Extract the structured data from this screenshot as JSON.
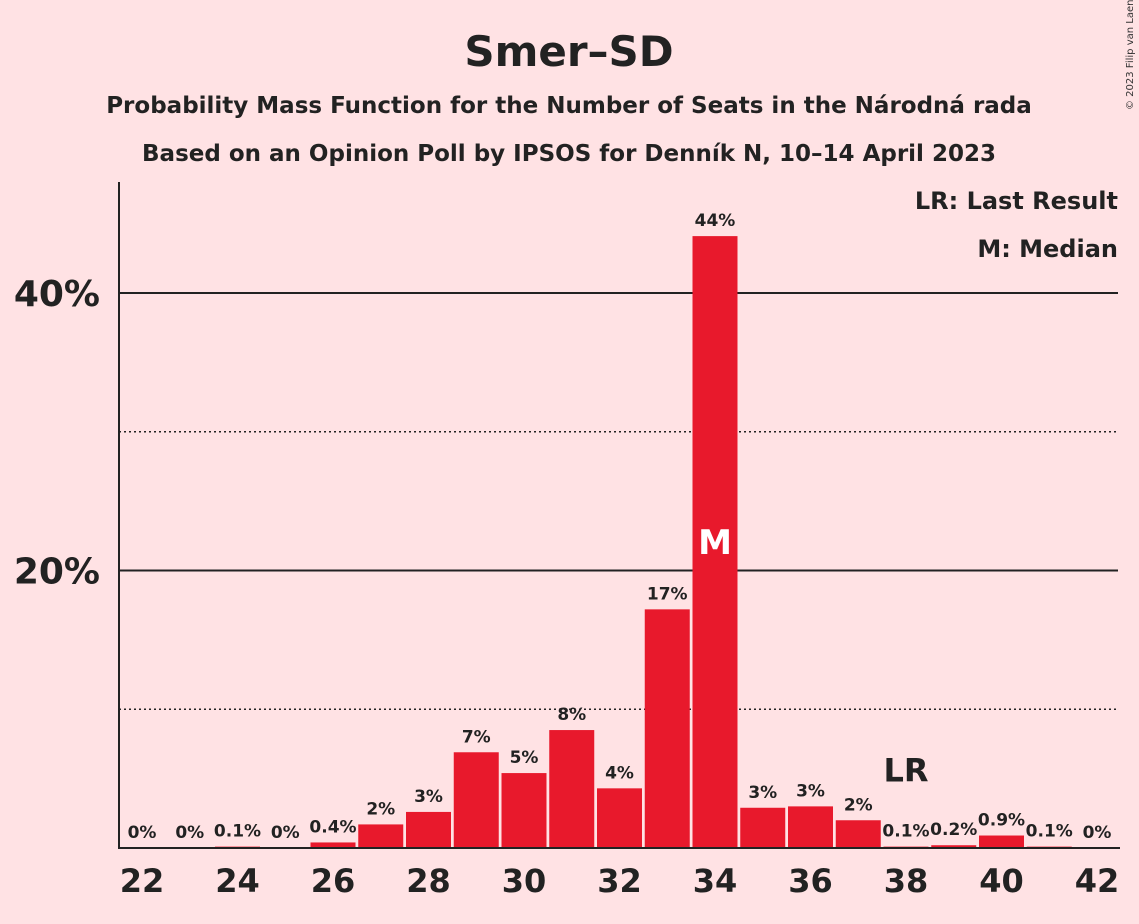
{
  "chart_data": {
    "type": "bar",
    "title": "Smer–SD",
    "subtitle_lines": [
      "Probability Mass Function for the Number of Seats in the Národná rada",
      "Based on an Opinion Poll by IPSOS for Denník N, 10–14 April 2023"
    ],
    "copyright": "© 2023 Filip van Laenen",
    "legend": [
      "LR: Last Result",
      "M: Median"
    ],
    "categories": [
      22,
      23,
      24,
      25,
      26,
      27,
      28,
      29,
      30,
      31,
      32,
      33,
      34,
      35,
      36,
      37,
      38,
      39,
      40,
      41,
      42
    ],
    "values": [
      0,
      0,
      0.1,
      0,
      0.4,
      1.7,
      2.6,
      6.9,
      5.4,
      8.5,
      4.3,
      17.2,
      44.1,
      2.9,
      3.0,
      2.0,
      0.1,
      0.2,
      0.9,
      0.1,
      0
    ],
    "value_labels": [
      "0%",
      "0%",
      "0.1%",
      "0%",
      "0.4%",
      "2%",
      "3%",
      "7%",
      "5%",
      "8%",
      "4%",
      "17%",
      "44%",
      "3%",
      "3%",
      "2%",
      "0.1%",
      "0.2%",
      "0.9%",
      "0.1%",
      "0%"
    ],
    "xtick_labels": [
      "22",
      "24",
      "26",
      "28",
      "30",
      "32",
      "34",
      "36",
      "38",
      "40",
      "42"
    ],
    "ytick_labels": [
      "20%",
      "40%"
    ],
    "solid_gridlines": [
      20,
      40
    ],
    "dotted_gridlines": [
      10,
      30
    ],
    "ylim": [
      0,
      48
    ],
    "median": {
      "seats": 34,
      "label": "M"
    },
    "last_result": {
      "seats": 38,
      "label": "LR"
    },
    "bar_color": "#e8192c",
    "background_color": "#ffe2e4"
  }
}
